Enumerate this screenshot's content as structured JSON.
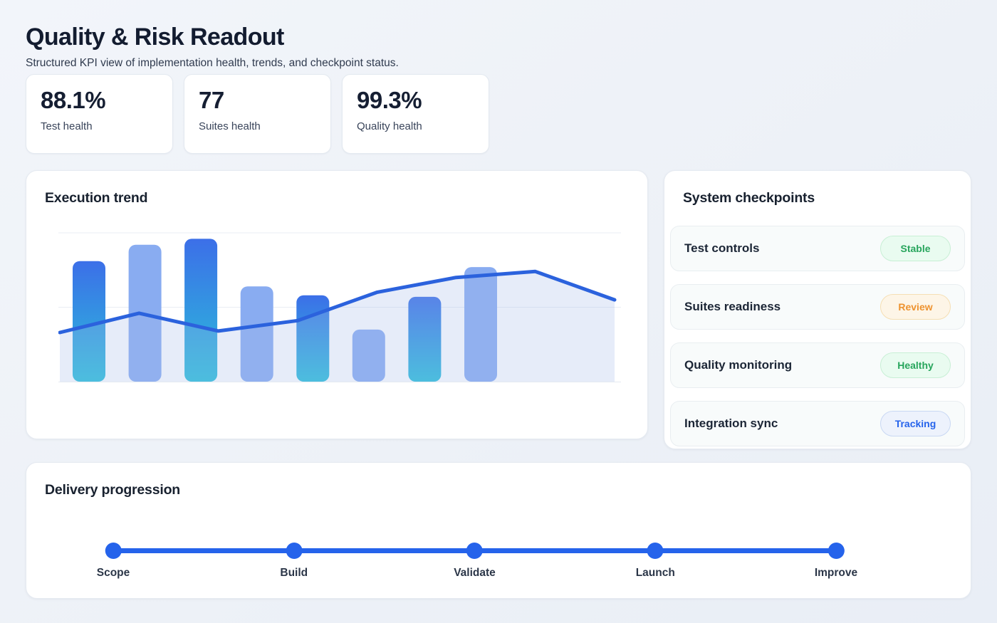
{
  "header": {
    "title": "Quality & Risk Readout",
    "subtitle": "Structured KPI view of implementation health, trends, and checkpoint status."
  },
  "kpis": [
    {
      "value": "88.1%",
      "label": "Test health"
    },
    {
      "value": "77",
      "label": "Suites health"
    },
    {
      "value": "99.3%",
      "label": "Quality health"
    }
  ],
  "chart_card": {
    "title": "Execution trend"
  },
  "chart_data": {
    "type": "bar",
    "subtype": "bar-with-line-overlay",
    "title": "Execution trend",
    "xlabel": "",
    "ylabel": "",
    "ylim": [
      0,
      100
    ],
    "gridlines": [
      50,
      100
    ],
    "grid_on": true,
    "legend_position": "none",
    "series": [
      {
        "name": "execution-bars",
        "type": "bar",
        "values": [
          81,
          92,
          96,
          64,
          58,
          35,
          57,
          77
        ]
      },
      {
        "name": "trend-line",
        "type": "line",
        "area": true,
        "values": [
          33,
          46,
          34,
          41,
          60,
          70,
          74,
          55
        ]
      }
    ],
    "colors": {
      "bar_gradient_top": "#3c6fe8",
      "bar_gradient_bottom": "#2abfda",
      "bar_light": "#89acf1",
      "line": "#2b62dd",
      "area_fill": "rgba(164,186,232,0.28)",
      "grid": "#e9edf4",
      "baseline": "#e4eaf1"
    }
  },
  "checkpoints": {
    "title": "System checkpoints",
    "items": [
      {
        "label": "Test controls",
        "status": "Stable",
        "status_color": "green"
      },
      {
        "label": "Suites readiness",
        "status": "Review",
        "status_color": "orange"
      },
      {
        "label": "Quality monitoring",
        "status": "Healthy",
        "status_color": "green"
      },
      {
        "label": "Integration sync",
        "status": "Tracking",
        "status_color": "blue"
      }
    ]
  },
  "delivery": {
    "title": "Delivery progression",
    "stages": [
      {
        "label": "Scope"
      },
      {
        "label": "Build"
      },
      {
        "label": "Validate"
      },
      {
        "label": "Launch"
      },
      {
        "label": "Improve"
      }
    ]
  },
  "colors": {
    "accent_blue": "#2563eb",
    "title_ink": "#131c30",
    "badges": {
      "green": {
        "text": "#27a55c",
        "bg": "#e9fbf0",
        "border": "#c8efd5"
      },
      "orange": {
        "text": "#ee9330",
        "bg": "#fdf5e7",
        "border": "#f5dfb4"
      },
      "blue": {
        "text": "#2563eb",
        "bg": "#edf2fc",
        "border": "#c9d8f3"
      }
    }
  }
}
